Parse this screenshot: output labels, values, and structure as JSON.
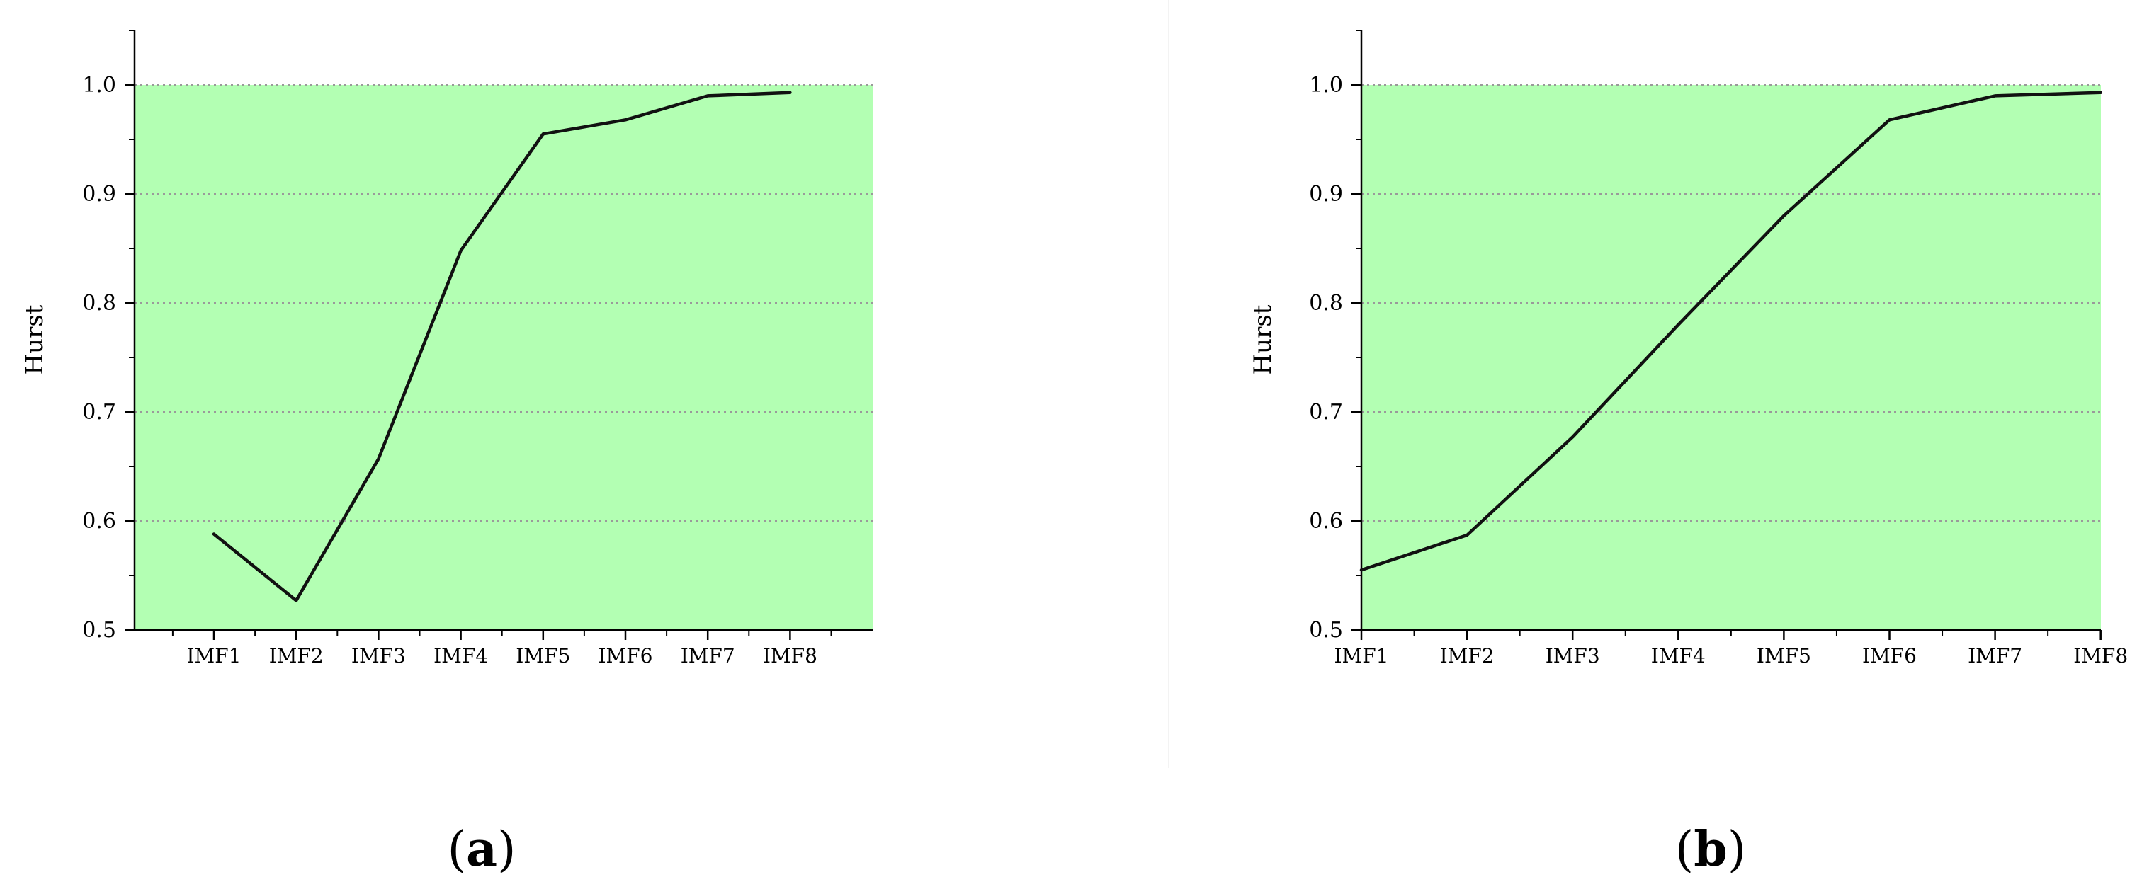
{
  "chart_data": [
    {
      "panel_label": "a",
      "type": "line",
      "categories": [
        "IMF1",
        "IMF2",
        "IMF3",
        "IMF4",
        "IMF5",
        "IMF6",
        "IMF7",
        "IMF8"
      ],
      "series": [
        {
          "values": [
            0.588,
            0.527,
            0.657,
            0.848,
            0.955,
            0.968,
            0.99,
            0.993
          ]
        }
      ],
      "title": "",
      "xlabel": "",
      "ylabel": "Hurst",
      "ylim": [
        0.5,
        1.05
      ],
      "yticks": [
        "0.5",
        "0.6",
        "0.7",
        "0.8",
        "0.9",
        "1.0"
      ],
      "grid": "horizontal dotted",
      "background_color": "#b3ffb3",
      "line_color": "#111111"
    },
    {
      "panel_label": "b",
      "type": "line",
      "categories": [
        "IMF1",
        "IMF2",
        "IMF3",
        "IMF4",
        "IMF5",
        "IMF6",
        "IMF7",
        "IMF8"
      ],
      "series": [
        {
          "values": [
            0.555,
            0.587,
            0.677,
            0.78,
            0.88,
            0.968,
            0.99,
            0.993
          ]
        }
      ],
      "title": "",
      "xlabel": "",
      "ylabel": "Hurst",
      "ylim": [
        0.5,
        1.05
      ],
      "yticks": [
        "0.5",
        "0.6",
        "0.7",
        "0.8",
        "0.9",
        "1.0"
      ],
      "grid": "horizontal dotted",
      "background_color": "#b3ffb3",
      "line_color": "#111111"
    }
  ]
}
